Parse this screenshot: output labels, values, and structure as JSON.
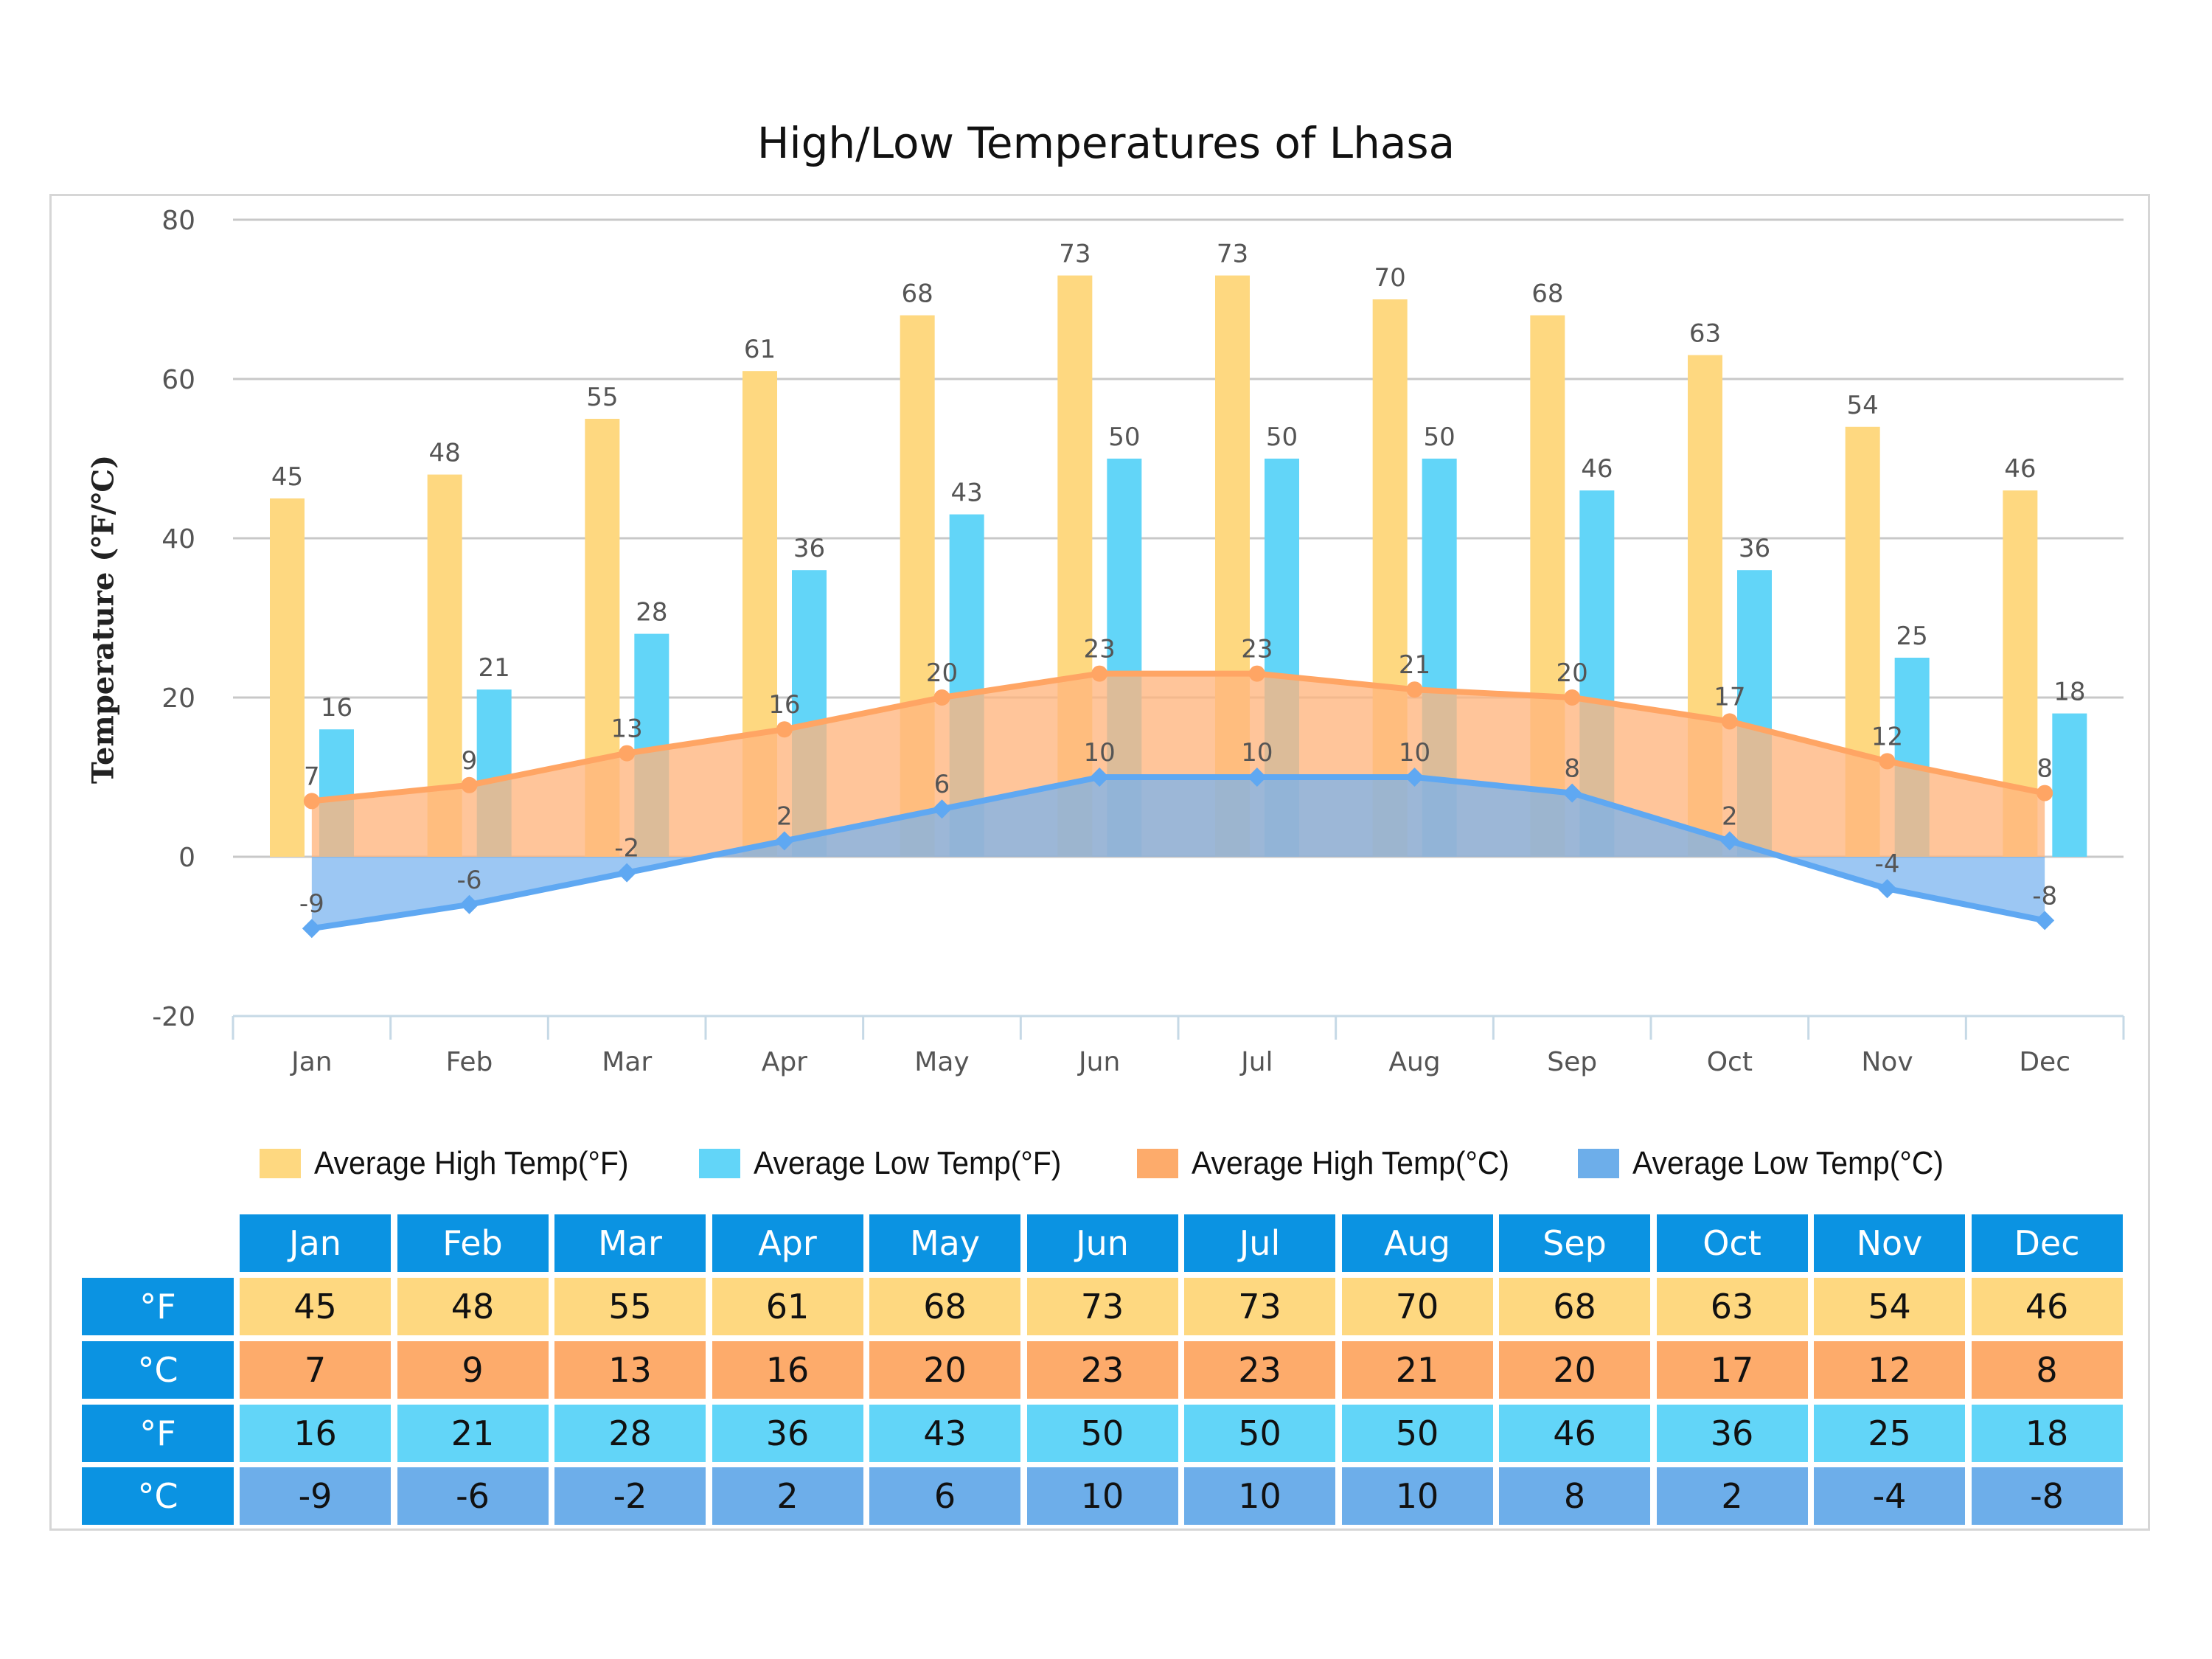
{
  "chart_data": {
    "type": "bar",
    "title": "High/Low Temperatures of Lhasa",
    "xlabel": "",
    "ylabel": "Temperature (℉/℃)",
    "ylim": [
      -20,
      80
    ],
    "yticks": [
      "80",
      "60",
      "40",
      "20",
      "0",
      "-20"
    ],
    "ytick_values": [
      80,
      60,
      40,
      20,
      0,
      -20
    ],
    "grid": true,
    "legend_position": "bottom",
    "categories": [
      "Jan",
      "Feb",
      "Mar",
      "Apr",
      "May",
      "Jun",
      "Jul",
      "Aug",
      "Sep",
      "Oct",
      "Nov",
      "Dec"
    ],
    "series": [
      {
        "name": "Average High Temp(°F)",
        "kind": "bar",
        "color": "#fed880",
        "values": [
          45,
          48,
          55,
          61,
          68,
          73,
          73,
          70,
          68,
          63,
          54,
          46
        ]
      },
      {
        "name": "Average Low Temp(°F)",
        "kind": "bar",
        "color": "#62d5f8",
        "values": [
          16,
          21,
          28,
          36,
          43,
          50,
          50,
          50,
          46,
          36,
          25,
          18
        ]
      },
      {
        "name": "Average High Temp(°C)",
        "kind": "area",
        "color": "#fdab6b",
        "line_color": "#ffa564",
        "values": [
          7,
          9,
          13,
          16,
          20,
          23,
          23,
          21,
          20,
          17,
          12,
          8
        ]
      },
      {
        "name": "Average Low Temp(°C)",
        "kind": "area",
        "color": "#6daeea",
        "line_color": "#5fa8f2",
        "values": [
          -9,
          -6,
          -2,
          2,
          6,
          10,
          10,
          10,
          8,
          2,
          -4,
          -8
        ]
      }
    ]
  },
  "table": {
    "header_color": "#0b93e2",
    "months": [
      "Jan",
      "Feb",
      "Mar",
      "Apr",
      "May",
      "Jun",
      "Jul",
      "Aug",
      "Sep",
      "Oct",
      "Nov",
      "Dec"
    ],
    "rows": [
      {
        "unit": "°F",
        "color": "#fed880",
        "values": [
          "45",
          "48",
          "55",
          "61",
          "68",
          "73",
          "73",
          "70",
          "68",
          "63",
          "54",
          "46"
        ]
      },
      {
        "unit": "°C",
        "color": "#fdab6b",
        "values": [
          "7",
          "9",
          "13",
          "16",
          "20",
          "23",
          "23",
          "21",
          "20",
          "17",
          "12",
          "8"
        ]
      },
      {
        "unit": "°F",
        "color": "#62d5f8",
        "values": [
          "16",
          "21",
          "28",
          "36",
          "43",
          "50",
          "50",
          "50",
          "46",
          "36",
          "25",
          "18"
        ]
      },
      {
        "unit": "°C",
        "color": "#6daeea",
        "values": [
          "-9",
          "-6",
          "-2",
          "2",
          "6",
          "10",
          "10",
          "10",
          "8",
          "2",
          "-4",
          "-8"
        ]
      }
    ]
  }
}
